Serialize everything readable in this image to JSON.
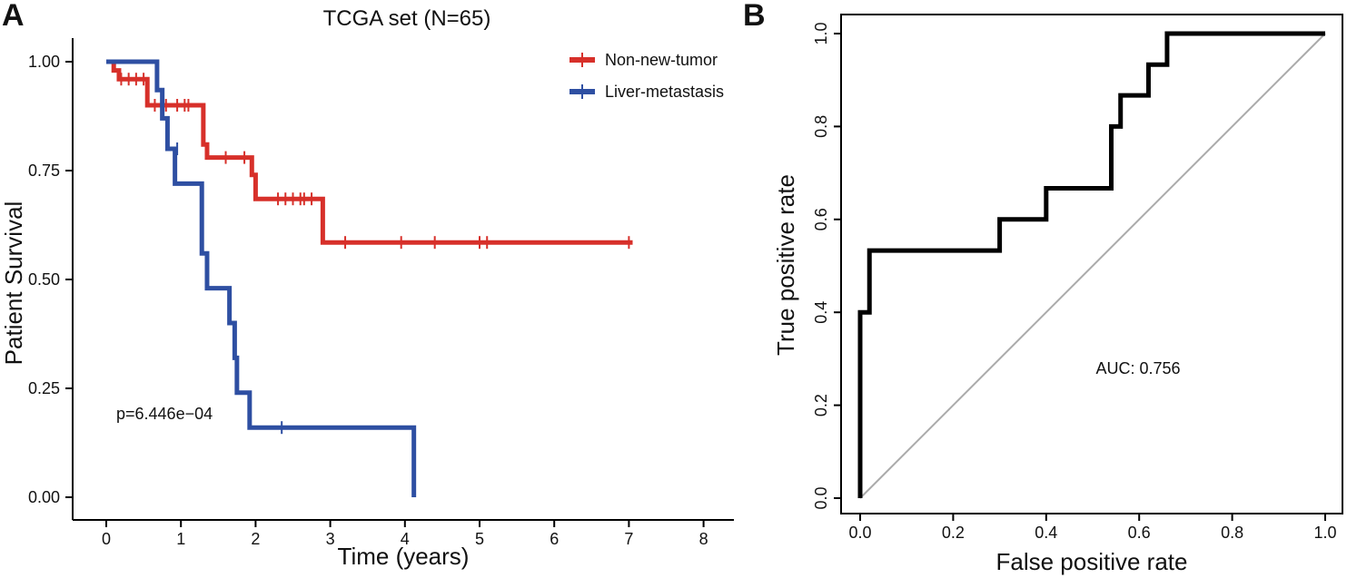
{
  "figure": {
    "panel_a_letter": "A",
    "panel_b_letter": "B"
  },
  "chart_data": [
    {
      "type": "line",
      "subtype": "kaplan-meier",
      "title": "TCGA set (N=65)",
      "xlabel": "Time (years)",
      "ylabel": "Patient Survival",
      "xlim": [
        0,
        8
      ],
      "ylim": [
        0,
        1
      ],
      "xticks": [
        "0",
        "1",
        "2",
        "3",
        "4",
        "5",
        "6",
        "7",
        "8"
      ],
      "yticks": [
        "0.00",
        "0.25",
        "0.50",
        "0.75",
        "1.00"
      ],
      "grid": false,
      "legend_position": "top-right",
      "annotation": "p=6.446e−04",
      "series": [
        {
          "name": "Non-new-tumor",
          "color": "#d7302a",
          "steps": [
            [
              0,
              1.0
            ],
            [
              0.1,
              0.98
            ],
            [
              0.17,
              0.96
            ],
            [
              0.55,
              0.9
            ],
            [
              1.3,
              0.81
            ],
            [
              1.35,
              0.78
            ],
            [
              1.95,
              0.74
            ],
            [
              2.0,
              0.685
            ],
            [
              2.9,
              0.585
            ],
            [
              7.05,
              0.585
            ]
          ],
          "censored": [
            [
              0.2,
              0.96
            ],
            [
              0.3,
              0.96
            ],
            [
              0.4,
              0.96
            ],
            [
              0.5,
              0.96
            ],
            [
              0.65,
              0.9
            ],
            [
              0.8,
              0.9
            ],
            [
              0.95,
              0.9
            ],
            [
              1.05,
              0.9
            ],
            [
              1.1,
              0.9
            ],
            [
              1.6,
              0.78
            ],
            [
              1.85,
              0.78
            ],
            [
              2.3,
              0.685
            ],
            [
              2.4,
              0.685
            ],
            [
              2.5,
              0.685
            ],
            [
              2.6,
              0.685
            ],
            [
              2.65,
              0.685
            ],
            [
              2.75,
              0.685
            ],
            [
              3.2,
              0.585
            ],
            [
              3.95,
              0.585
            ],
            [
              4.4,
              0.585
            ],
            [
              5.0,
              0.585
            ],
            [
              5.1,
              0.585
            ],
            [
              7.0,
              0.585
            ]
          ]
        },
        {
          "name": "Liver-metastasis",
          "color": "#2e4fa2",
          "steps": [
            [
              0,
              1.0
            ],
            [
              0.68,
              0.935
            ],
            [
              0.75,
              0.87
            ],
            [
              0.82,
              0.8
            ],
            [
              0.92,
              0.72
            ],
            [
              1.28,
              0.56
            ],
            [
              1.35,
              0.48
            ],
            [
              1.65,
              0.4
            ],
            [
              1.72,
              0.32
            ],
            [
              1.75,
              0.24
            ],
            [
              1.92,
              0.16
            ],
            [
              4.12,
              0.0
            ]
          ],
          "censored": [
            [
              0.95,
              0.8
            ],
            [
              2.35,
              0.16
            ]
          ]
        }
      ]
    },
    {
      "type": "line",
      "subtype": "roc",
      "xlabel": "False positive rate",
      "ylabel": "True positive rate",
      "xlim": [
        0,
        1
      ],
      "ylim": [
        0,
        1
      ],
      "xticks": [
        "0.0",
        "0.2",
        "0.4",
        "0.6",
        "0.8",
        "1.0"
      ],
      "yticks": [
        "0.0",
        "0.2",
        "0.4",
        "0.6",
        "0.8",
        "1.0"
      ],
      "grid": false,
      "annotation": "AUC: 0.756",
      "reference_line": {
        "from": [
          0,
          0
        ],
        "to": [
          1,
          1
        ],
        "color": "#aaaaaa"
      },
      "series": [
        {
          "name": "",
          "color": "#000000",
          "points": [
            [
              0,
              0
            ],
            [
              0,
              0.4
            ],
            [
              0.02,
              0.4
            ],
            [
              0.02,
              0.533
            ],
            [
              0.3,
              0.533
            ],
            [
              0.3,
              0.6
            ],
            [
              0.4,
              0.6
            ],
            [
              0.4,
              0.667
            ],
            [
              0.54,
              0.667
            ],
            [
              0.54,
              0.8
            ],
            [
              0.56,
              0.8
            ],
            [
              0.56,
              0.867
            ],
            [
              0.62,
              0.867
            ],
            [
              0.62,
              0.933
            ],
            [
              0.66,
              0.933
            ],
            [
              0.66,
              1.0
            ],
            [
              1.0,
              1.0
            ]
          ]
        }
      ]
    }
  ]
}
